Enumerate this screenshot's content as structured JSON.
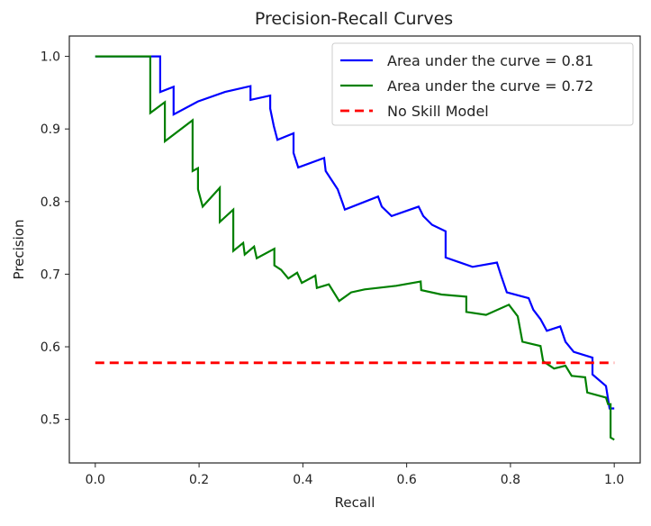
{
  "chart_data": {
    "type": "line",
    "title": "Precision-Recall Curves",
    "xlabel": "Recall",
    "ylabel": "Precision",
    "xlim": [
      -0.05,
      1.05
    ],
    "ylim": [
      0.44,
      1.028
    ],
    "xticks": [
      0.0,
      0.2,
      0.4,
      0.6,
      0.8,
      1.0
    ],
    "xtick_labels": [
      "0.0",
      "0.2",
      "0.4",
      "0.6",
      "0.8",
      "1.0"
    ],
    "yticks": [
      0.5,
      0.6,
      0.7,
      0.8,
      0.9,
      1.0
    ],
    "ytick_labels": [
      "0.5",
      "0.6",
      "0.7",
      "0.8",
      "0.9",
      "1.0"
    ],
    "grid": false,
    "legend_position": "top-right",
    "series": [
      {
        "name": "Area under the curve = 0.81",
        "color": "#0000ff",
        "style": "solid",
        "x": [
          0,
          0.125,
          0.125,
          0.151,
          0.151,
          0.198,
          0.25,
          0.299,
          0.299,
          0.337,
          0.337,
          0.344,
          0.351,
          0.382,
          0.382,
          0.391,
          0.441,
          0.444,
          0.455,
          0.467,
          0.476,
          0.481,
          0.545,
          0.552,
          0.571,
          0.623,
          0.632,
          0.649,
          0.675,
          0.675,
          0.727,
          0.774,
          0.781,
          0.793,
          0.835,
          0.844,
          0.858,
          0.87,
          0.896,
          0.906,
          0.922,
          0.958,
          0.958,
          0.984,
          0.991,
          1.0
        ],
        "y": [
          1,
          1,
          0.951,
          0.958,
          0.92,
          0.938,
          0.951,
          0.959,
          0.94,
          0.946,
          0.928,
          0.904,
          0.885,
          0.894,
          0.867,
          0.847,
          0.86,
          0.842,
          0.83,
          0.817,
          0.799,
          0.789,
          0.807,
          0.793,
          0.78,
          0.793,
          0.78,
          0.768,
          0.759,
          0.723,
          0.71,
          0.716,
          0.7,
          0.675,
          0.667,
          0.651,
          0.638,
          0.622,
          0.628,
          0.607,
          0.593,
          0.585,
          0.562,
          0.546,
          0.515,
          0.515
        ]
      },
      {
        "name": "Area under the curve = 0.72",
        "color": "#008000",
        "style": "solid",
        "x": [
          0,
          0.106,
          0.106,
          0.134,
          0.134,
          0.1875,
          0.1875,
          0.198,
          0.198,
          0.207,
          0.24,
          0.24,
          0.266,
          0.266,
          0.285,
          0.288,
          0.306,
          0.311,
          0.345,
          0.345,
          0.358,
          0.372,
          0.389,
          0.398,
          0.424,
          0.427,
          0.45,
          0.47,
          0.493,
          0.519,
          0.58,
          0.627,
          0.628,
          0.667,
          0.715,
          0.715,
          0.753,
          0.797,
          0.814,
          0.823,
          0.858,
          0.863,
          0.884,
          0.906,
          0.918,
          0.944,
          0.948,
          0.984,
          0.988,
          0.993,
          0.993,
          1.0
        ],
        "y": [
          1,
          1,
          0.922,
          0.937,
          0.883,
          0.912,
          0.842,
          0.846,
          0.817,
          0.793,
          0.819,
          0.772,
          0.789,
          0.732,
          0.743,
          0.727,
          0.738,
          0.722,
          0.735,
          0.712,
          0.706,
          0.694,
          0.702,
          0.688,
          0.698,
          0.681,
          0.686,
          0.663,
          0.675,
          0.679,
          0.684,
          0.69,
          0.678,
          0.672,
          0.669,
          0.648,
          0.644,
          0.658,
          0.642,
          0.607,
          0.601,
          0.58,
          0.57,
          0.574,
          0.56,
          0.558,
          0.537,
          0.53,
          0.521,
          0.521,
          0.475,
          0.472
        ]
      },
      {
        "name": "No Skill Model",
        "color": "#ff0000",
        "style": "dashed",
        "x": [
          0,
          1
        ],
        "y": [
          0.578,
          0.578
        ]
      }
    ]
  }
}
